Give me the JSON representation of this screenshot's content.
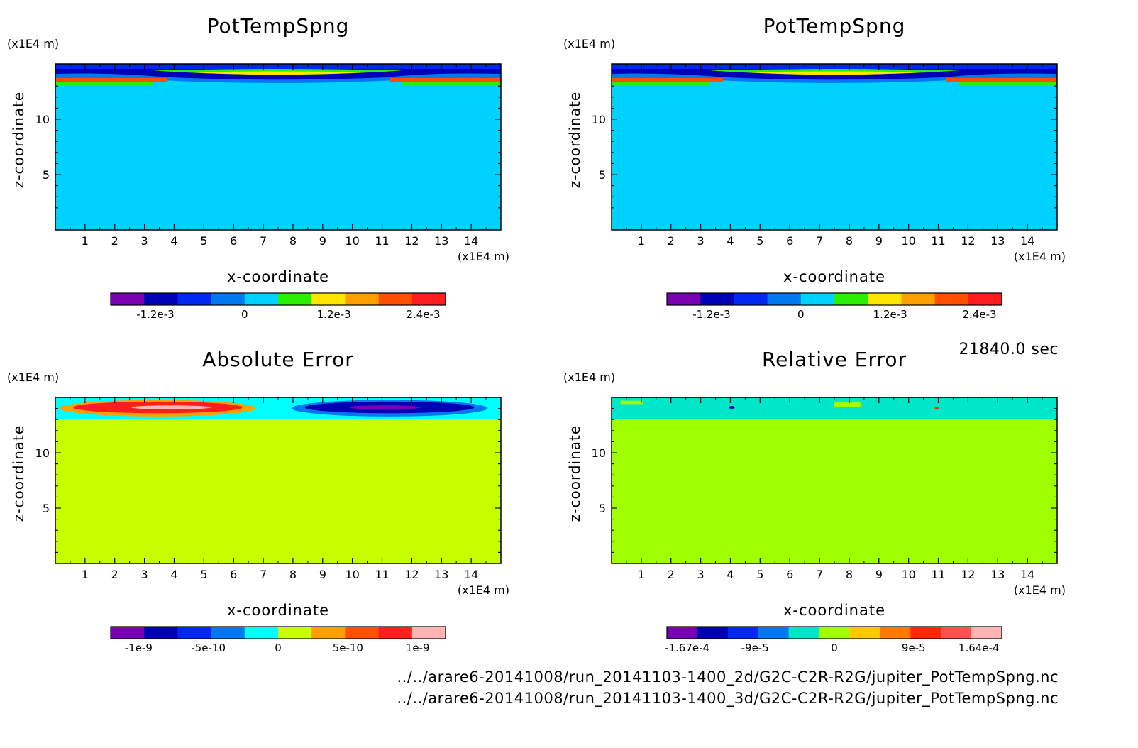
{
  "chart_data": [
    {
      "type": "heatmap",
      "title": "PotTempSpng",
      "xlabel": "x-coordinate",
      "ylabel": "z-coordinate",
      "x_unit": "(x1E4 m)",
      "y_unit": "(x1E4 m)",
      "xlim": [
        0,
        15
      ],
      "ylim": [
        0,
        15
      ],
      "x_ticks": [
        "1",
        "2",
        "3",
        "4",
        "5",
        "6",
        "7",
        "8",
        "9",
        "10",
        "11",
        "12",
        "13",
        "14"
      ],
      "y_ticks": [
        "5",
        "10"
      ],
      "colorbar": {
        "colors": [
          "#7a00b4",
          "#0000b4",
          "#0028f0",
          "#0078f0",
          "#00d2ff",
          "#28f000",
          "#ffe600",
          "#ffa000",
          "#ff5000",
          "#ff1e1e"
        ],
        "tick_labels": [
          "-1.2e-3",
          "0",
          "1.2e-3",
          "2.4e-3"
        ],
        "tick_values": [
          -0.0012,
          0,
          0.0012,
          0.0024
        ],
        "range": [
          -0.0018,
          0.0027
        ]
      },
      "background_color": "#00d2ff"
    },
    {
      "type": "heatmap",
      "title": "PotTempSpng",
      "xlabel": "x-coordinate",
      "ylabel": "z-coordinate",
      "x_unit": "(x1E4 m)",
      "y_unit": "(x1E4 m)",
      "xlim": [
        0,
        15
      ],
      "ylim": [
        0,
        15
      ],
      "x_ticks": [
        "1",
        "2",
        "3",
        "4",
        "5",
        "6",
        "7",
        "8",
        "9",
        "10",
        "11",
        "12",
        "13",
        "14"
      ],
      "y_ticks": [
        "5",
        "10"
      ],
      "colorbar": {
        "colors": [
          "#7a00b4",
          "#0000b4",
          "#0028f0",
          "#0078f0",
          "#00d2ff",
          "#28f000",
          "#ffe600",
          "#ffa000",
          "#ff5000",
          "#ff1e1e"
        ],
        "tick_labels": [
          "-1.2e-3",
          "0",
          "1.2e-3",
          "2.4e-3"
        ],
        "tick_values": [
          -0.0012,
          0,
          0.0012,
          0.0024
        ],
        "range": [
          -0.0018,
          0.0027
        ]
      },
      "background_color": "#00d2ff"
    },
    {
      "type": "heatmap",
      "title": "Absolute Error",
      "xlabel": "x-coordinate",
      "ylabel": "z-coordinate",
      "x_unit": "(x1E4 m)",
      "y_unit": "(x1E4 m)",
      "xlim": [
        0,
        15
      ],
      "ylim": [
        0,
        15
      ],
      "x_ticks": [
        "1",
        "2",
        "3",
        "4",
        "5",
        "6",
        "7",
        "8",
        "9",
        "10",
        "11",
        "12",
        "13",
        "14"
      ],
      "y_ticks": [
        "5",
        "10"
      ],
      "colorbar": {
        "colors": [
          "#7a00b4",
          "#0000b4",
          "#0028f0",
          "#0078f0",
          "#00ffff",
          "#c8ff00",
          "#ffa000",
          "#ff5000",
          "#ff1e1e",
          "#ffb4b4"
        ],
        "tick_labels": [
          "-1e-9",
          "-5e-10",
          "0",
          "5e-10",
          "1e-9"
        ],
        "tick_values": [
          -1e-09,
          -5e-10,
          0,
          5e-10,
          1e-09
        ],
        "range": [
          -1.2e-09,
          1.2e-09
        ]
      },
      "background_color": "#c8ff00"
    },
    {
      "type": "heatmap",
      "title": "Relative Error",
      "xlabel": "x-coordinate",
      "ylabel": "z-coordinate",
      "x_unit": "(x1E4 m)",
      "y_unit": "(x1E4 m)",
      "xlim": [
        0,
        15
      ],
      "ylim": [
        0,
        15
      ],
      "x_ticks": [
        "1",
        "2",
        "3",
        "4",
        "5",
        "6",
        "7",
        "8",
        "9",
        "10",
        "11",
        "12",
        "13",
        "14"
      ],
      "y_ticks": [
        "5",
        "10"
      ],
      "colorbar": {
        "colors": [
          "#7a00b4",
          "#0000b4",
          "#0028f0",
          "#0078f0",
          "#00e6c8",
          "#a0ff00",
          "#ffc800",
          "#ff7800",
          "#ff2800",
          "#ff5050",
          "#ffb4b4"
        ],
        "tick_labels": [
          "-1.67e-4",
          "-9e-5",
          "0",
          "9e-5",
          "1.64e-4"
        ],
        "tick_values": [
          -0.000167,
          -9e-05,
          0,
          9e-05,
          0.000164
        ],
        "range": [
          -0.00019,
          0.00019
        ]
      },
      "background_color": "#a0ff00"
    }
  ],
  "time_label": "21840.0 sec",
  "file_paths": [
    "../../arare6-20141008/run_20141103-1400_2d/G2C-C2R-R2G/jupiter_PotTempSpng.nc",
    "../../arare6-20141008/run_20141103-1400_3d/G2C-C2R-R2G/jupiter_PotTempSpng.nc"
  ]
}
